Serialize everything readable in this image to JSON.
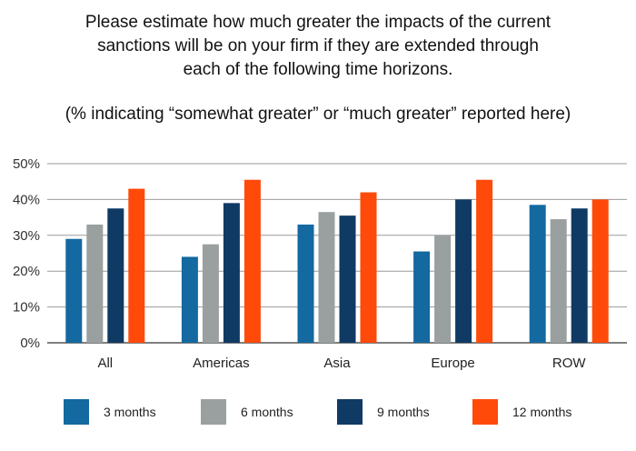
{
  "title": "Please estimate how much greater the impacts of the current\nsanctions will be on your firm if they are extended through\neach of the following time horizons.",
  "subtitle": "(% indicating “somewhat greater” or “much greater” reported here)",
  "chart_data": {
    "type": "bar",
    "title": "Please estimate how much greater the impacts of the current sanctions will be on your firm if they are extended through each of the following time horizons.",
    "subtitle": "(% indicating “somewhat greater” or “much greater” reported here)",
    "categories": [
      "All",
      "Americas",
      "Asia",
      "Europe",
      "ROW"
    ],
    "series": [
      {
        "name": "3 months",
        "color": "#1369a0",
        "values": [
          29,
          24,
          33,
          25.5,
          38.5
        ]
      },
      {
        "name": "6 months",
        "color": "#9aa0a0",
        "values": [
          33,
          27.5,
          36.5,
          30,
          34.5
        ]
      },
      {
        "name": "9 months",
        "color": "#0f3a64",
        "values": [
          37.5,
          39,
          35.5,
          40,
          37.5
        ]
      },
      {
        "name": "12 months",
        "color": "#ff4a0a",
        "values": [
          43,
          45.5,
          42,
          45.5,
          40
        ]
      }
    ],
    "ylim": [
      0,
      50
    ],
    "yticks": [
      "0%",
      "10%",
      "20%",
      "30%",
      "40%",
      "50%"
    ],
    "ytick_values": [
      0,
      10,
      20,
      30,
      40,
      50
    ],
    "grid": true,
    "legend_position": "bottom"
  }
}
